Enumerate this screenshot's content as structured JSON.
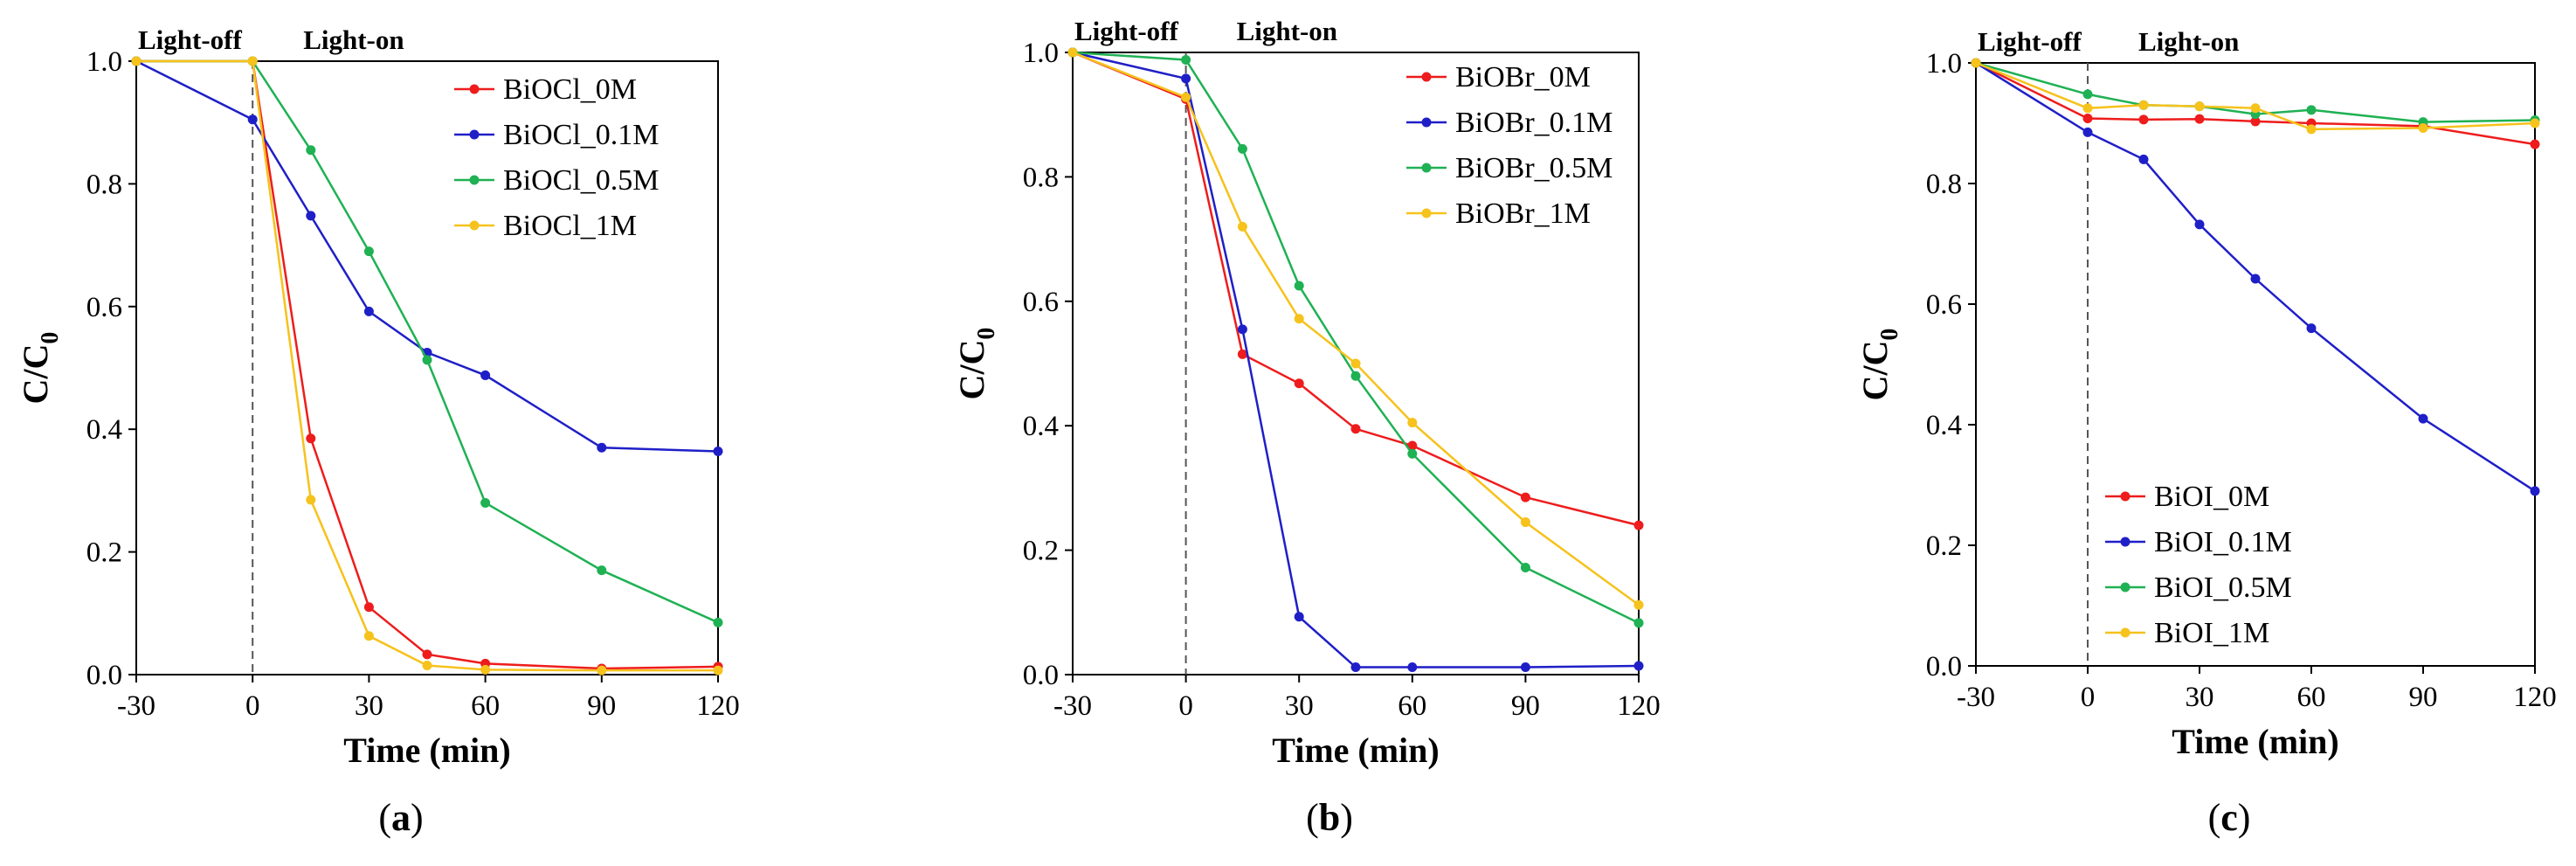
{
  "chart_data": [
    {
      "type": "line",
      "panel_label": "a",
      "x": [
        -30,
        0,
        15,
        30,
        45,
        60,
        90,
        120
      ],
      "xticks": [
        "-30",
        "0",
        "30",
        "60",
        "90",
        "120"
      ],
      "yticks": [
        "0.0",
        "0.2",
        "0.4",
        "0.6",
        "0.8",
        "1.0"
      ],
      "xlim": [
        -30,
        120
      ],
      "ylim": [
        0,
        1
      ],
      "xlabel": "Time (min)",
      "ylabel_main": "C/C",
      "ylabel_sub": "0",
      "phase_off": "Light-off",
      "phase_on": "Light-on",
      "legend_position": "top-right",
      "series": [
        {
          "name": "BiOCl_0M",
          "color": "#ee1c1c",
          "values": [
            1.0,
            1.0,
            0.385,
            0.11,
            0.033,
            0.018,
            0.01,
            0.013
          ]
        },
        {
          "name": "BiOCl_0.1M",
          "color": "#1f1fc8",
          "values": [
            1.0,
            0.905,
            0.748,
            0.592,
            0.525,
            0.488,
            0.37,
            0.364
          ]
        },
        {
          "name": "BiOCl_0.5M",
          "color": "#1fb153",
          "values": [
            1.0,
            1.0,
            0.855,
            0.69,
            0.513,
            0.28,
            0.17,
            0.085
          ]
        },
        {
          "name": "BiOCl_1M",
          "color": "#f6c21c",
          "values": [
            1.0,
            1.0,
            0.285,
            0.063,
            0.015,
            0.008,
            0.007,
            0.007
          ]
        }
      ]
    },
    {
      "type": "line",
      "panel_label": "b",
      "x": [
        -30,
        0,
        15,
        30,
        45,
        60,
        90,
        120
      ],
      "xticks": [
        "-30",
        "0",
        "30",
        "60",
        "90",
        "120"
      ],
      "yticks": [
        "0.0",
        "0.2",
        "0.4",
        "0.6",
        "0.8",
        "1.0"
      ],
      "xlim": [
        -30,
        120
      ],
      "ylim": [
        0,
        1
      ],
      "xlabel": "Time (min)",
      "ylabel_main": "C/C",
      "ylabel_sub": "0",
      "phase_off": "Light-off",
      "phase_on": "Light-on",
      "legend_position": "top-right",
      "series": [
        {
          "name": "BiOBr_0M",
          "color": "#ee1c1c",
          "values": [
            1.0,
            0.925,
            0.515,
            0.468,
            0.395,
            0.368,
            0.285,
            0.24
          ]
        },
        {
          "name": "BiOBr_0.1M",
          "color": "#1f1fc8",
          "values": [
            1.0,
            0.958,
            0.555,
            0.093,
            0.012,
            0.012,
            0.012,
            0.014
          ]
        },
        {
          "name": "BiOBr_0.5M",
          "color": "#1fb153",
          "values": [
            1.0,
            0.988,
            0.845,
            0.625,
            0.48,
            0.355,
            0.172,
            0.083
          ]
        },
        {
          "name": "BiOBr_1M",
          "color": "#f6c21c",
          "values": [
            1.0,
            0.928,
            0.72,
            0.572,
            0.5,
            0.405,
            0.245,
            0.112
          ]
        }
      ]
    },
    {
      "type": "line",
      "panel_label": "c",
      "x": [
        -30,
        0,
        15,
        30,
        45,
        60,
        90,
        120
      ],
      "xticks": [
        "-30",
        "0",
        "30",
        "60",
        "90",
        "120"
      ],
      "yticks": [
        "0.0",
        "0.2",
        "0.4",
        "0.6",
        "0.8",
        "1.0"
      ],
      "xlim": [
        -30,
        120
      ],
      "ylim": [
        0,
        1
      ],
      "xlabel": "Time (min)",
      "ylabel_main": "C/C",
      "ylabel_sub": "0",
      "phase_off": "Light-off",
      "phase_on": "Light-on",
      "legend_position": "bottom-left",
      "series": [
        {
          "name": "BiOI_0M",
          "color": "#ee1c1c",
          "values": [
            1.0,
            0.908,
            0.906,
            0.907,
            0.903,
            0.9,
            0.895,
            0.865
          ]
        },
        {
          "name": "BiOI_0.1M",
          "color": "#1f1fc8",
          "values": [
            1.0,
            0.885,
            0.84,
            0.732,
            0.642,
            0.56,
            0.41,
            0.29
          ]
        },
        {
          "name": "BiOI_0.5M",
          "color": "#1fb153",
          "values": [
            1.0,
            0.948,
            0.93,
            0.928,
            0.915,
            0.922,
            0.902,
            0.905
          ]
        },
        {
          "name": "BiOI_1M",
          "color": "#f6c21c",
          "values": [
            1.0,
            0.925,
            0.93,
            0.928,
            0.925,
            0.89,
            0.892,
            0.9
          ]
        }
      ]
    }
  ]
}
